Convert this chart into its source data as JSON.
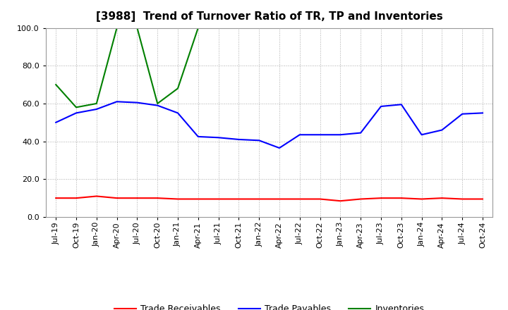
{
  "title": "[3988]  Trend of Turnover Ratio of TR, TP and Inventories",
  "ylim": [
    0.0,
    100.0
  ],
  "yticks": [
    0.0,
    20.0,
    40.0,
    60.0,
    80.0,
    100.0
  ],
  "x_labels": [
    "Jul-19",
    "Oct-19",
    "Jan-20",
    "Apr-20",
    "Jul-20",
    "Oct-20",
    "Jan-21",
    "Apr-21",
    "Jul-21",
    "Oct-21",
    "Jan-22",
    "Apr-22",
    "Jul-22",
    "Oct-22",
    "Jan-23",
    "Apr-23",
    "Jul-23",
    "Oct-23",
    "Jan-24",
    "Apr-24",
    "Jul-24",
    "Oct-24"
  ],
  "trade_receivables": [
    10.0,
    10.0,
    11.0,
    10.0,
    10.0,
    10.0,
    9.5,
    9.5,
    9.5,
    9.5,
    9.5,
    9.5,
    9.5,
    9.5,
    8.5,
    9.5,
    10.0,
    10.0,
    9.5,
    10.0,
    9.5,
    9.5
  ],
  "trade_payables": [
    50.0,
    55.0,
    57.0,
    61.0,
    60.5,
    59.0,
    55.0,
    42.5,
    42.0,
    41.0,
    40.5,
    36.5,
    43.5,
    43.5,
    43.5,
    44.5,
    58.5,
    59.5,
    43.5,
    46.0,
    54.5,
    55.0
  ],
  "inventories": [
    70.0,
    58.0,
    60.0,
    100.0,
    100.0,
    60.0,
    68.0,
    100.0,
    null,
    null,
    null,
    null,
    null,
    null,
    null,
    null,
    null,
    null,
    null,
    null,
    null,
    null
  ],
  "tr_color": "#ff0000",
  "tp_color": "#0000ff",
  "inv_color": "#008000",
  "bg_color": "#ffffff",
  "plot_bg_color": "#ffffff",
  "grid_color": "#aaaaaa",
  "title_fontsize": 11,
  "tick_fontsize": 8,
  "legend_fontsize": 9
}
